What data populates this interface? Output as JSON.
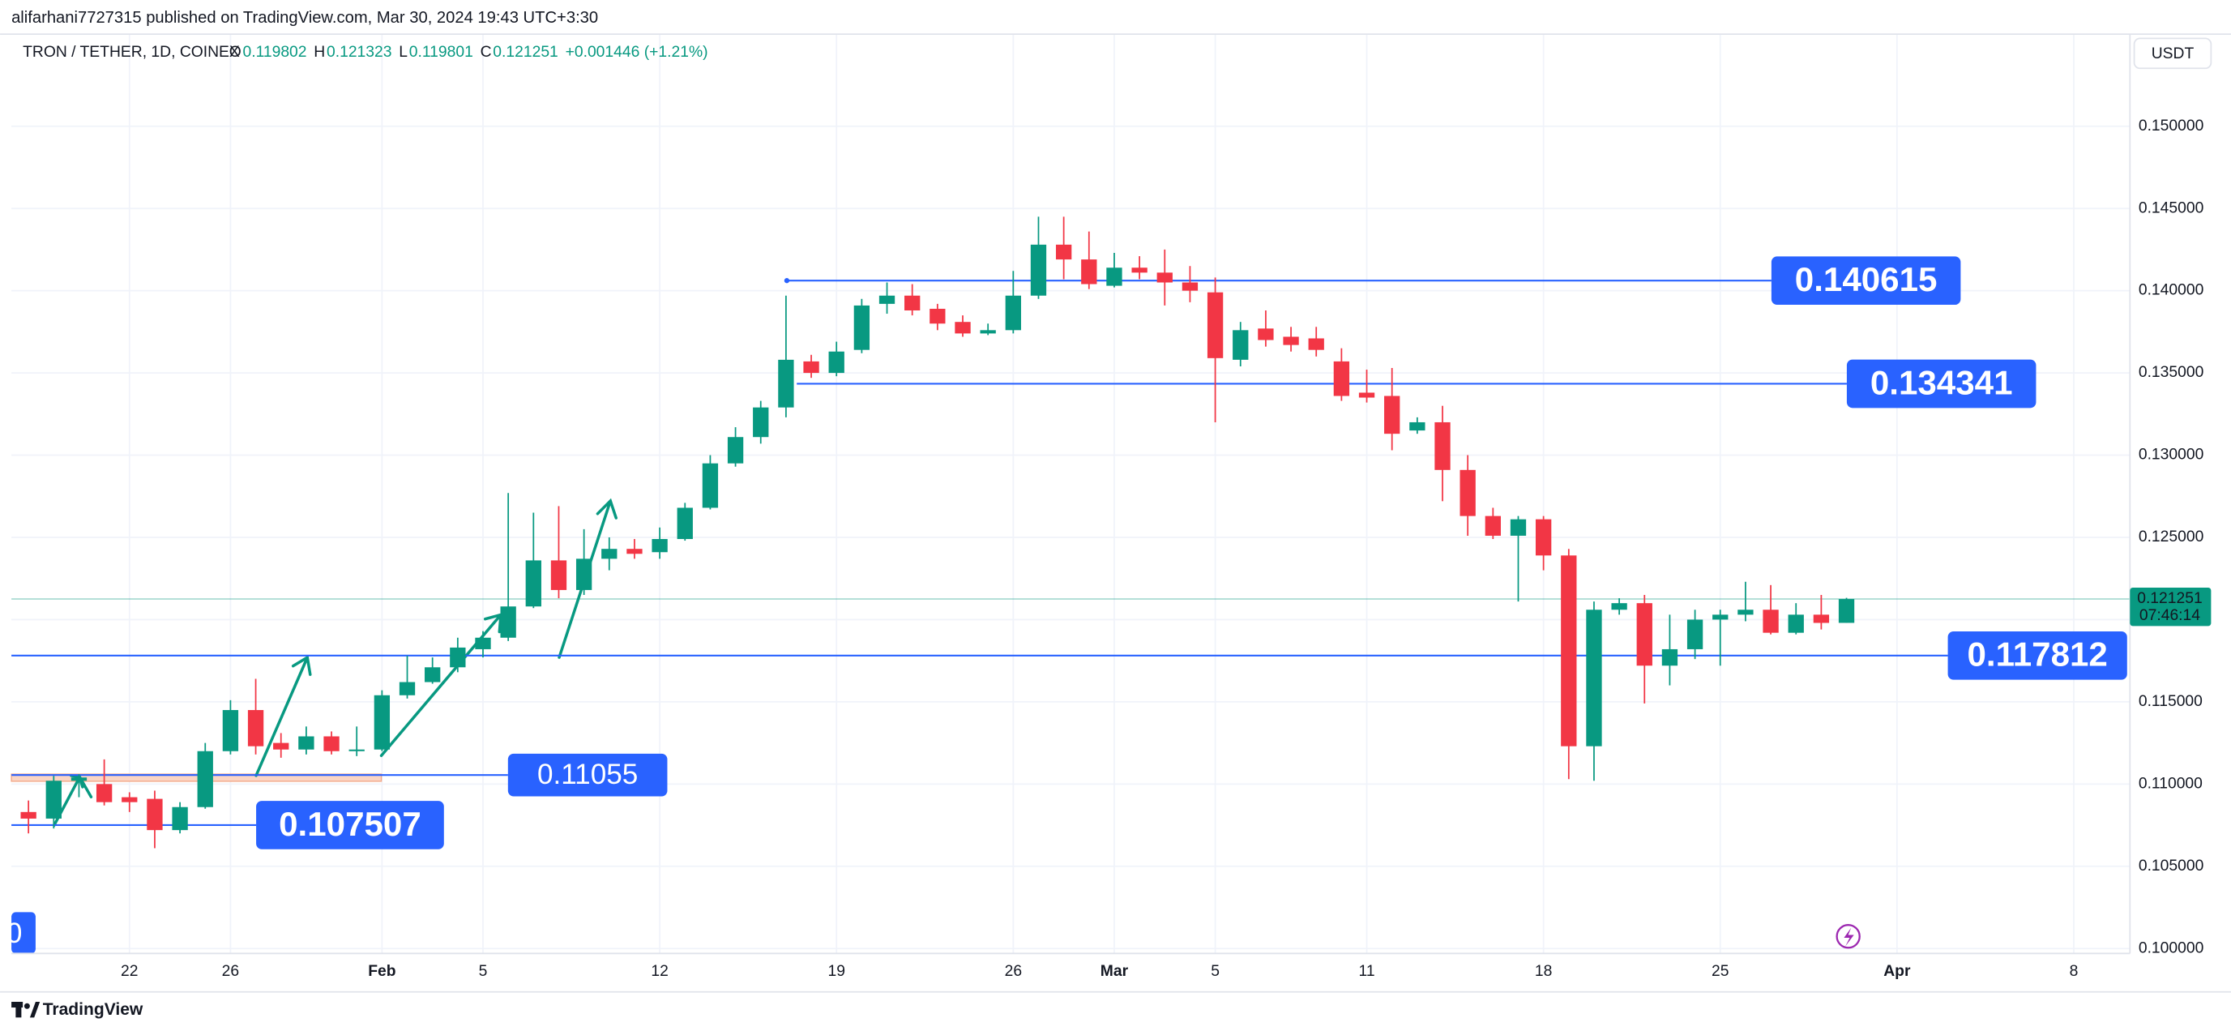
{
  "header": {
    "published": "alifarhani7727315 published on TradingView.com, Mar 30, 2024 19:43 UTC+3:30"
  },
  "legend": {
    "symbol": "TRON / TETHER, 1D, COINEX",
    "items": [
      {
        "key": "O",
        "value": "0.119802"
      },
      {
        "key": "H",
        "value": "0.121323"
      },
      {
        "key": "L",
        "value": "0.119801"
      },
      {
        "key": "C",
        "value": "0.121251"
      }
    ],
    "change": "+0.001446 (+1.21%)"
  },
  "currency": "USDT",
  "footer": {
    "brand": "TradingView"
  },
  "chart_data": {
    "type": "candlestick",
    "colors": {
      "up": "#089981",
      "down": "#f23645",
      "level": "#2962ff"
    },
    "x": [
      "01-18",
      "01-19",
      "01-20",
      "01-21",
      "01-22",
      "01-23",
      "01-24",
      "01-25",
      "01-26",
      "01-27",
      "01-28",
      "01-29",
      "01-30",
      "01-31",
      "02-01",
      "02-02",
      "02-03",
      "02-04",
      "02-05",
      "02-06",
      "02-07",
      "02-08",
      "02-09",
      "02-10",
      "02-11",
      "02-12",
      "02-13",
      "02-14",
      "02-15",
      "02-16",
      "02-17",
      "02-18",
      "02-19",
      "02-20",
      "02-21",
      "02-22",
      "02-23",
      "02-24",
      "02-25",
      "02-26",
      "02-27",
      "02-28",
      "02-29",
      "03-01",
      "03-02",
      "03-03",
      "03-04",
      "03-05",
      "03-06",
      "03-07",
      "03-08",
      "03-09",
      "03-10",
      "03-11",
      "03-12",
      "03-13",
      "03-14",
      "03-15",
      "03-16",
      "03-17",
      "03-18",
      "03-19",
      "03-20",
      "03-21",
      "03-22",
      "03-23",
      "03-24",
      "03-25",
      "03-26",
      "03-27",
      "03-28",
      "03-29",
      "03-30"
    ],
    "open": [
      0.1083,
      0.1079,
      0.1102,
      0.11,
      0.1092,
      0.1091,
      0.1072,
      0.1086,
      0.112,
      0.1145,
      0.1125,
      0.1121,
      0.1129,
      0.112,
      0.1121,
      0.1154,
      0.1162,
      0.1171,
      0.1182,
      0.1189,
      0.1208,
      0.1236,
      0.1218,
      0.1237,
      0.1243,
      0.1241,
      0.1249,
      0.1268,
      0.1295,
      0.1311,
      0.1329,
      0.1357,
      0.135,
      0.1364,
      0.1392,
      0.1397,
      0.1389,
      0.1381,
      0.1374,
      0.1376,
      0.1397,
      0.1428,
      0.1419,
      0.1403,
      0.1414,
      0.1411,
      0.1405,
      0.1399,
      0.1358,
      0.1377,
      0.1372,
      0.1371,
      0.1357,
      0.1338,
      0.1336,
      0.1315,
      0.132,
      0.1291,
      0.1263,
      0.1251,
      0.1261,
      0.1239,
      0.1123,
      0.1206,
      0.121,
      0.1172,
      0.1182,
      0.12,
      0.1203,
      0.1206,
      0.1192,
      0.1203,
      0.119802
    ],
    "high": [
      0.109,
      0.1105,
      0.1106,
      0.1115,
      0.1095,
      0.1096,
      0.1089,
      0.1125,
      0.1151,
      0.1164,
      0.1131,
      0.1135,
      0.1132,
      0.1135,
      0.1157,
      0.1178,
      0.1177,
      0.1189,
      0.1193,
      0.1277,
      0.1265,
      0.1269,
      0.1255,
      0.125,
      0.1249,
      0.1256,
      0.1271,
      0.13,
      0.1317,
      0.1333,
      0.1397,
      0.1361,
      0.1369,
      0.1395,
      0.1405,
      0.1404,
      0.1392,
      0.1385,
      0.138,
      0.1412,
      0.1445,
      0.1445,
      0.1436,
      0.1423,
      0.1421,
      0.1425,
      0.1415,
      0.1408,
      0.1381,
      0.1388,
      0.1378,
      0.1378,
      0.1365,
      0.1352,
      0.1353,
      0.1323,
      0.133,
      0.13,
      0.1268,
      0.1263,
      0.1263,
      0.1243,
      0.1211,
      0.1213,
      0.1215,
      0.1203,
      0.1206,
      0.1206,
      0.1223,
      0.1221,
      0.121,
      0.1215,
      0.121323
    ],
    "low": [
      0.107,
      0.1073,
      0.1092,
      0.1087,
      0.1083,
      0.1061,
      0.107,
      0.1085,
      0.1118,
      0.1118,
      0.1116,
      0.1118,
      0.1118,
      0.1117,
      0.112,
      0.1152,
      0.1161,
      0.1168,
      0.1177,
      0.1187,
      0.1207,
      0.1213,
      0.1215,
      0.123,
      0.1237,
      0.1237,
      0.1248,
      0.1267,
      0.1293,
      0.1307,
      0.1323,
      0.1347,
      0.1348,
      0.1362,
      0.1386,
      0.1385,
      0.1376,
      0.1372,
      0.1373,
      0.1374,
      0.1395,
      0.1407,
      0.1401,
      0.1402,
      0.1407,
      0.1391,
      0.1393,
      0.132,
      0.1354,
      0.1366,
      0.1363,
      0.136,
      0.1333,
      0.1332,
      0.1303,
      0.1313,
      0.1272,
      0.1251,
      0.1249,
      0.1211,
      0.123,
      0.1103,
      0.1102,
      0.1203,
      0.1149,
      0.116,
      0.1176,
      0.1172,
      0.1199,
      0.1191,
      0.1191,
      0.1194,
      0.119801
    ],
    "close": [
      0.1079,
      0.1102,
      0.1104,
      0.1089,
      0.1089,
      0.1072,
      0.1086,
      0.112,
      0.1145,
      0.1123,
      0.1121,
      0.1129,
      0.112,
      0.1121,
      0.1154,
      0.1162,
      0.1171,
      0.1183,
      0.1189,
      0.1208,
      0.1236,
      0.1218,
      0.1237,
      0.1243,
      0.124,
      0.1249,
      0.1268,
      0.1295,
      0.1311,
      0.1329,
      0.1358,
      0.135,
      0.1363,
      0.1391,
      0.1397,
      0.1388,
      0.138,
      0.1374,
      0.1376,
      0.1397,
      0.1428,
      0.1419,
      0.1404,
      0.1414,
      0.1411,
      0.1405,
      0.14,
      0.1359,
      0.1376,
      0.137,
      0.1367,
      0.1364,
      0.1336,
      0.1335,
      0.1313,
      0.132,
      0.1291,
      0.1263,
      0.1251,
      0.1261,
      0.1239,
      0.1123,
      0.1206,
      0.121,
      0.1172,
      0.1182,
      0.12,
      0.1203,
      0.1206,
      0.1192,
      0.1203,
      0.1198,
      0.121251
    ],
    "levels": [
      0.140615,
      0.134341,
      0.117812,
      0.11055,
      0.107507
    ],
    "cut_label": "0",
    "last_price": 0.121251,
    "countdown": "07:46:14",
    "xlim": [
      "01-17",
      "04-10"
    ],
    "xticks": [
      {
        "value": "01-22",
        "label": "22"
      },
      {
        "value": "01-26",
        "label": "26"
      },
      {
        "value": "02-01",
        "label": "Feb"
      },
      {
        "value": "02-05",
        "label": "5"
      },
      {
        "value": "02-12",
        "label": "12"
      },
      {
        "value": "02-19",
        "label": "19"
      },
      {
        "value": "02-26",
        "label": "26"
      },
      {
        "value": "03-01",
        "label": "Mar"
      },
      {
        "value": "03-05",
        "label": "5"
      },
      {
        "value": "03-11",
        "label": "11"
      },
      {
        "value": "03-18",
        "label": "18"
      },
      {
        "value": "03-25",
        "label": "25"
      },
      {
        "value": "04-01",
        "label": "Apr"
      },
      {
        "value": "04-08",
        "label": "8"
      }
    ],
    "ylim": [
      0.0997,
      0.1556
    ],
    "yticks": [
      {
        "value": 0.1,
        "label": "0.100000"
      },
      {
        "value": 0.105,
        "label": "0.105000"
      },
      {
        "value": 0.11,
        "label": "0.110000"
      },
      {
        "value": 0.115,
        "label": "0.115000"
      },
      {
        "value": 0.12,
        "label": "0.120000"
      },
      {
        "value": 0.125,
        "label": "0.125000"
      },
      {
        "value": 0.13,
        "label": "0.130000"
      },
      {
        "value": 0.135,
        "label": "0.135000"
      },
      {
        "value": 0.14,
        "label": "0.140000"
      },
      {
        "value": 0.145,
        "label": "0.145000"
      },
      {
        "value": 0.15,
        "label": "0.150000"
      }
    ],
    "grid": true
  }
}
